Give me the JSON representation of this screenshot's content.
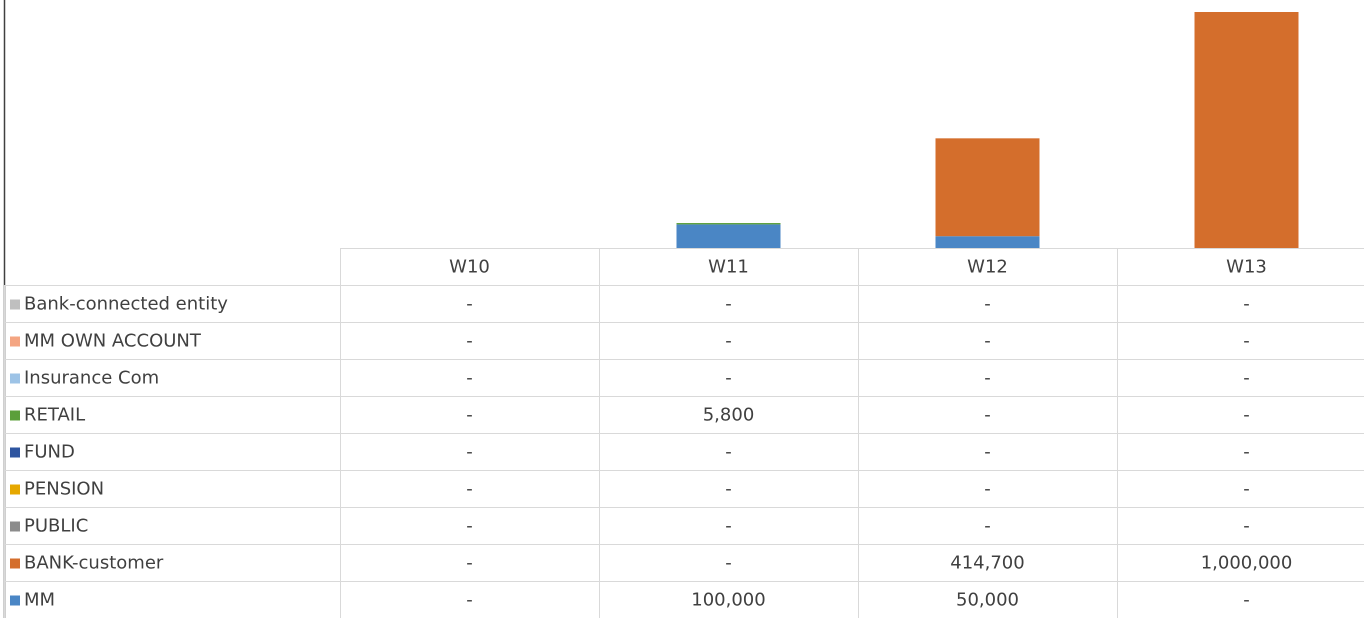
{
  "chart_data": {
    "type": "stacked_bar",
    "categories": [
      "W10",
      "W11",
      "W12",
      "W13"
    ],
    "ylim": [
      0,
      1000000
    ],
    "series": [
      {
        "name": "Bank-connected entity",
        "color": "#bfbfbf",
        "values": [
          0,
          0,
          0,
          0
        ],
        "value_labels": [
          "-",
          "-",
          "-",
          "-"
        ]
      },
      {
        "name": "MM OWN ACCOUNT",
        "color": "#f4a582",
        "values": [
          0,
          0,
          0,
          0
        ],
        "value_labels": [
          "-",
          "-",
          "-",
          "-"
        ]
      },
      {
        "name": "Insurance Com",
        "color": "#9dc3e6",
        "values": [
          0,
          0,
          0,
          0
        ],
        "value_labels": [
          "-",
          "-",
          "-",
          "-"
        ]
      },
      {
        "name": "RETAIL",
        "color": "#5b9f3a",
        "values": [
          0,
          5800,
          0,
          0
        ],
        "value_labels": [
          "-",
          "5,800",
          "-",
          "-"
        ]
      },
      {
        "name": "FUND",
        "color": "#2e55a0",
        "values": [
          0,
          0,
          0,
          0
        ],
        "value_labels": [
          "-",
          "-",
          "-",
          "-"
        ]
      },
      {
        "name": "PENSION",
        "color": "#e6a800",
        "values": [
          0,
          0,
          0,
          0
        ],
        "value_labels": [
          "-",
          "-",
          "-",
          "-"
        ]
      },
      {
        "name": "PUBLIC",
        "color": "#8c8c8c",
        "values": [
          0,
          0,
          0,
          0
        ],
        "value_labels": [
          "-",
          "-",
          "-",
          "-"
        ]
      },
      {
        "name": "BANK-customer",
        "color": "#d46e2c",
        "values": [
          0,
          0,
          414700,
          1000000
        ],
        "value_labels": [
          "-",
          "-",
          "414,700",
          "1,000,000"
        ]
      },
      {
        "name": "MM",
        "color": "#4a86c5",
        "values": [
          0,
          100000,
          50000,
          0
        ],
        "value_labels": [
          "-",
          "100,000",
          "50,000",
          "-"
        ]
      }
    ]
  }
}
